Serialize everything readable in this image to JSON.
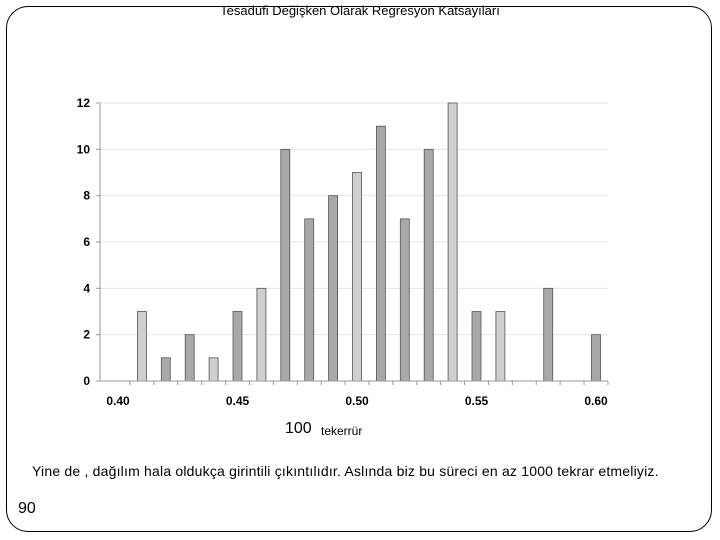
{
  "slide": {
    "title": "Tesadüfi Değişken Olarak Regresyon Katsayıları",
    "caption_main": "100",
    "caption_sub": "tekerrür",
    "body_text": "Yine de , dağılım hala oldukça girintili çıkıntılıdır. Aslında biz bu süreci en az 1000 tekrar etmeliyiz.",
    "page_number": "90"
  },
  "chart_data": {
    "type": "bar",
    "x": [
      0.41,
      0.42,
      0.43,
      0.44,
      0.45,
      0.46,
      0.47,
      0.48,
      0.49,
      0.5,
      0.51,
      0.52,
      0.53,
      0.54,
      0.55,
      0.56,
      0.58,
      0.6
    ],
    "values": [
      3,
      1,
      2,
      1,
      3,
      4,
      10,
      7,
      8,
      9,
      11,
      7,
      10,
      12,
      3,
      3,
      4,
      2
    ],
    "highlight": [
      true,
      false,
      false,
      true,
      false,
      true,
      false,
      false,
      false,
      true,
      false,
      false,
      false,
      true,
      false,
      true,
      false,
      false
    ],
    "x_ticks": [
      "0.40",
      "0.45",
      "0.50",
      "0.55",
      "0.60"
    ],
    "y_ticks": [
      "0",
      "2",
      "4",
      "6",
      "8",
      "10",
      "12"
    ],
    "xlim": [
      0.4,
      0.6
    ],
    "ylim": [
      0,
      12
    ],
    "grid": true,
    "colors": {
      "bar": "#a8a8a8",
      "bar_highlight": "#cfcfcf",
      "bar_edge": "#555555",
      "grid": "#e6e6e6"
    }
  }
}
